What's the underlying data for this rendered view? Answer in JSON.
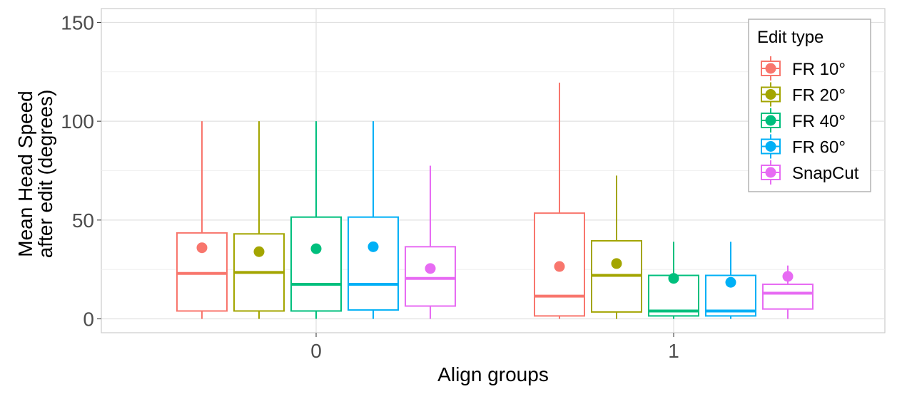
{
  "chart_data": {
    "type": "box",
    "xlabel": "Align groups",
    "ylabel_lines": [
      "Mean Head Speed",
      "after edit (degrees)"
    ],
    "categories": [
      "0",
      "1"
    ],
    "ylim": [
      -7,
      157
    ],
    "yticks": [
      0,
      50,
      100,
      150
    ],
    "grid": true,
    "legend": {
      "title": "Edit type",
      "position": "right-top"
    },
    "series": [
      {
        "name": "FR 10°",
        "color": "#F8766D",
        "boxes": [
          {
            "whisker_low": 0,
            "q1": 4,
            "median": 23,
            "q3": 43.5,
            "whisker_high": 100,
            "mean": 36
          },
          {
            "whisker_low": 0,
            "q1": 1.5,
            "median": 11.5,
            "q3": 53.5,
            "whisker_high": 119.5,
            "mean": 26.5
          }
        ]
      },
      {
        "name": "FR 20°",
        "color": "#A3A500",
        "boxes": [
          {
            "whisker_low": 0,
            "q1": 4,
            "median": 23.5,
            "q3": 43,
            "whisker_high": 100,
            "mean": 34
          },
          {
            "whisker_low": 0,
            "q1": 3.5,
            "median": 22,
            "q3": 39.5,
            "whisker_high": 72.5,
            "mean": 28
          }
        ]
      },
      {
        "name": "FR 40°",
        "color": "#00BF7D",
        "boxes": [
          {
            "whisker_low": 0,
            "q1": 4,
            "median": 17.5,
            "q3": 51.5,
            "whisker_high": 100,
            "mean": 35.5
          },
          {
            "whisker_low": 0,
            "q1": 1.5,
            "median": 4,
            "q3": 22,
            "whisker_high": 39,
            "mean": 20.5
          }
        ]
      },
      {
        "name": "FR 60°",
        "color": "#00B0F6",
        "boxes": [
          {
            "whisker_low": 0,
            "q1": 4.5,
            "median": 17.5,
            "q3": 51.5,
            "whisker_high": 100,
            "mean": 36.5
          },
          {
            "whisker_low": 0,
            "q1": 1.5,
            "median": 4,
            "q3": 22,
            "whisker_high": 39,
            "mean": 18.5
          }
        ]
      },
      {
        "name": "SnapCut",
        "color": "#E76BF3",
        "boxes": [
          {
            "whisker_low": 0,
            "q1": 6.5,
            "median": 20.5,
            "q3": 36.5,
            "whisker_high": 77.5,
            "mean": 25.5
          },
          {
            "whisker_low": 0,
            "q1": 5,
            "median": 13,
            "q3": 17.5,
            "whisker_high": 27,
            "mean": 21.5
          }
        ]
      }
    ]
  }
}
